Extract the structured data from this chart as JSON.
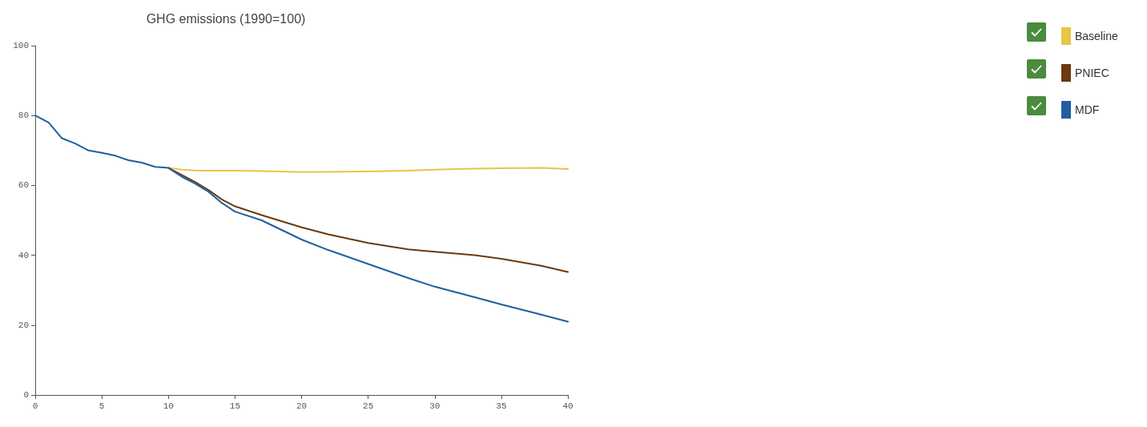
{
  "chart_data": {
    "type": "line",
    "title": "GHG emissions (1990=100)",
    "x": [
      0,
      1,
      2,
      3,
      4,
      5,
      6,
      7,
      8,
      9,
      10,
      11,
      12,
      13,
      14,
      15,
      17,
      20,
      22,
      25,
      28,
      30,
      33,
      35,
      38,
      40
    ],
    "series": [
      {
        "name": "Baseline",
        "color": "#e8c547",
        "values": [
          null,
          null,
          null,
          null,
          null,
          null,
          null,
          null,
          null,
          null,
          65,
          64.5,
          64.3,
          64.2,
          64.2,
          64.2,
          64.1,
          63.8,
          63.9,
          64,
          64.2,
          64.5,
          64.8,
          64.9,
          65,
          64.7
        ]
      },
      {
        "name": "PNIEC",
        "color": "#6b3a0f",
        "values": [
          null,
          null,
          null,
          null,
          null,
          null,
          null,
          null,
          null,
          null,
          65,
          63,
          61,
          58.7,
          56,
          54,
          51.5,
          48,
          46,
          43.5,
          41.7,
          41,
          40,
          39,
          37,
          35.2
        ]
      },
      {
        "name": "MDF",
        "color": "#1f5fa0",
        "values": [
          80,
          78,
          73.5,
          72,
          70,
          69.3,
          68.5,
          67.2,
          66.5,
          65.3,
          65,
          62.5,
          60.5,
          58.2,
          55,
          52.5,
          50,
          44.5,
          41.5,
          37.5,
          33.5,
          31,
          28,
          25.9,
          23,
          21
        ]
      }
    ],
    "xlim": [
      0,
      40
    ],
    "xticks": [
      0,
      5,
      10,
      15,
      20,
      25,
      30,
      35,
      40
    ],
    "ylim": [
      0,
      100
    ],
    "yticks": [
      0,
      20,
      40,
      60,
      80,
      100
    ],
    "grid": false,
    "legend": "top right",
    "marker": "none",
    "line_style": "solid"
  }
}
